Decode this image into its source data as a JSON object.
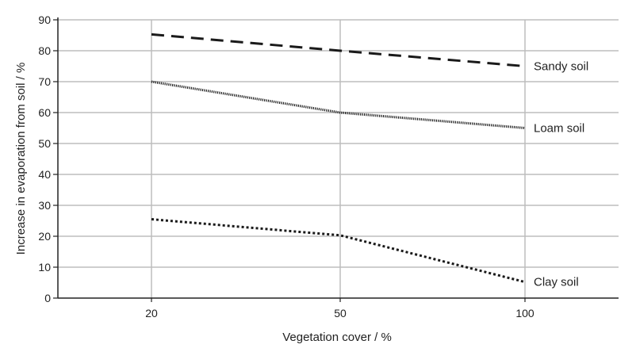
{
  "chart_data": {
    "type": "line",
    "categories": [
      "20",
      "50",
      "100"
    ],
    "xlabel": "Vegetation cover / %",
    "ylabel": "Increase in evaporation from soil / %",
    "ylim": [
      0,
      90
    ],
    "yticks": [
      0,
      10,
      20,
      30,
      40,
      50,
      60,
      70,
      80,
      90
    ],
    "grid": true,
    "legend": "none",
    "series": [
      {
        "name": "Sandy soil",
        "values": [
          85.3,
          80,
          75
        ],
        "style": "dashed",
        "color": "#1a1a1a"
      },
      {
        "name": "Loam soil",
        "values": [
          70,
          60,
          55
        ],
        "style": "dotted-fine",
        "color": "#1a1a1a"
      },
      {
        "name": "Clay soil",
        "values": [
          25.5,
          20.3,
          5.2
        ],
        "style": "dotted",
        "color": "#1a1a1a"
      }
    ],
    "colors": {
      "grid": "#bdbdbd",
      "axis": "#222222"
    }
  }
}
